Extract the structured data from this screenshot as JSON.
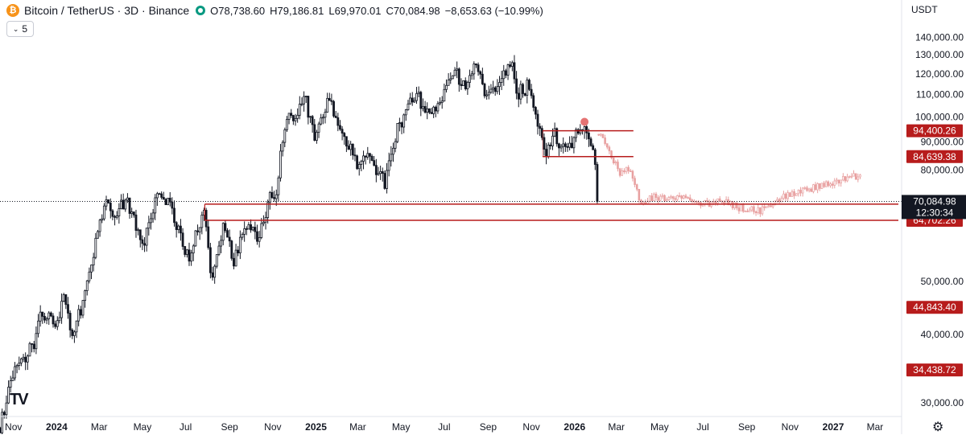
{
  "header": {
    "symbol": "Bitcoin / TetherUS · 3D · Binance",
    "open": "O78,738.60",
    "high": "H79,186.81",
    "low": "L69,970.01",
    "close": "C70,084.98",
    "change": "−8,653.63 (−10.99%)",
    "icon": "bitcoin-icon",
    "status_icon": "market-open-dot-icon"
  },
  "indicator_toggle": "5",
  "currency_label": "USDT",
  "logo_text": "TV",
  "colors": {
    "up": "#ffffff",
    "down": "#131722",
    "level": "#b71c1c",
    "projection": "#e8a0a0",
    "grid": "#eceef2",
    "axis": "#131722"
  },
  "chart_data": {
    "type": "candlestick",
    "title": "Bitcoin / TetherUS · 3D · Binance",
    "y_axis": {
      "scale": "log",
      "range": [
        28500,
        152000
      ],
      "ticks": [
        30000,
        40000,
        50000,
        80000,
        90000,
        100000,
        110000,
        120000,
        130000,
        140000
      ],
      "tick_labels": [
        "30,000.00",
        "40,000.00",
        "50,000.00",
        "80,000.00",
        "90,000.00",
        "100,000.00",
        "110,000.00",
        "120,000.00",
        "130,000.00",
        "140,000.00"
      ]
    },
    "x_axis": {
      "range": [
        "2023-10-13",
        "2027-04-03"
      ],
      "ticks": [
        {
          "date": "2023-11-01",
          "label": "Nov",
          "bold": false
        },
        {
          "date": "2024-01-01",
          "label": "2024",
          "bold": true
        },
        {
          "date": "2024-03-01",
          "label": "Mar",
          "bold": false
        },
        {
          "date": "2024-05-01",
          "label": "May",
          "bold": false
        },
        {
          "date": "2024-07-01",
          "label": "Jul",
          "bold": false
        },
        {
          "date": "2024-09-01",
          "label": "Sep",
          "bold": false
        },
        {
          "date": "2024-11-01",
          "label": "Nov",
          "bold": false
        },
        {
          "date": "2025-01-01",
          "label": "2025",
          "bold": true
        },
        {
          "date": "2025-03-01",
          "label": "Mar",
          "bold": false
        },
        {
          "date": "2025-05-01",
          "label": "May",
          "bold": false
        },
        {
          "date": "2025-07-01",
          "label": "Jul",
          "bold": false
        },
        {
          "date": "2025-09-01",
          "label": "Sep",
          "bold": false
        },
        {
          "date": "2025-11-01",
          "label": "Nov",
          "bold": false
        },
        {
          "date": "2026-01-01",
          "label": "2026",
          "bold": true
        },
        {
          "date": "2026-03-01",
          "label": "Mar",
          "bold": false
        },
        {
          "date": "2026-05-01",
          "label": "May",
          "bold": false
        },
        {
          "date": "2026-07-01",
          "label": "Jul",
          "bold": false
        },
        {
          "date": "2026-09-01",
          "label": "Sep",
          "bold": false
        },
        {
          "date": "2026-11-01",
          "label": "Nov",
          "bold": false
        },
        {
          "date": "2027-01-01",
          "label": "2027",
          "bold": true
        },
        {
          "date": "2027-03-01",
          "label": "Mar",
          "bold": false
        }
      ]
    },
    "price_path": [
      [
        "2023-10-13",
        27000
      ],
      [
        "2023-11-01",
        34500
      ],
      [
        "2023-12-01",
        38500
      ],
      [
        "2023-12-09",
        43500
      ],
      [
        "2024-01-01",
        42500
      ],
      [
        "2024-01-11",
        46500
      ],
      [
        "2024-01-23",
        39500
      ],
      [
        "2024-02-10",
        47500
      ],
      [
        "2024-02-28",
        62000
      ],
      [
        "2024-03-13",
        72500
      ],
      [
        "2024-03-20",
        64000
      ],
      [
        "2024-04-08",
        71500
      ],
      [
        "2024-05-01",
        57500
      ],
      [
        "2024-05-20",
        71500
      ],
      [
        "2024-06-07",
        70000
      ],
      [
        "2024-07-05",
        54500
      ],
      [
        "2024-07-28",
        69500
      ],
      [
        "2024-08-05",
        50500
      ],
      [
        "2024-08-25",
        64500
      ],
      [
        "2024-09-06",
        53500
      ],
      [
        "2024-09-27",
        65500
      ],
      [
        "2024-10-10",
        59500
      ],
      [
        "2024-10-29",
        72500
      ],
      [
        "2024-11-05",
        68500
      ],
      [
        "2024-11-13",
        90000
      ],
      [
        "2024-11-22",
        99000
      ],
      [
        "2024-12-05",
        103000
      ],
      [
        "2024-12-17",
        107500
      ],
      [
        "2024-12-30",
        92500
      ],
      [
        "2025-01-20",
        108000
      ],
      [
        "2025-02-03",
        97000
      ],
      [
        "2025-02-28",
        81500
      ],
      [
        "2025-03-18",
        84500
      ],
      [
        "2025-04-08",
        76000
      ],
      [
        "2025-04-25",
        94500
      ],
      [
        "2025-05-22",
        111000
      ],
      [
        "2025-06-05",
        101500
      ],
      [
        "2025-06-20",
        103500
      ],
      [
        "2025-07-14",
        121500
      ],
      [
        "2025-08-02",
        113500
      ],
      [
        "2025-08-14",
        123500
      ],
      [
        "2025-09-01",
        108500
      ],
      [
        "2025-09-18",
        117000
      ],
      [
        "2025-10-06",
        125500
      ],
      [
        "2025-10-10",
        110000
      ],
      [
        "2025-10-28",
        114000
      ],
      [
        "2025-11-21",
        84000
      ],
      [
        "2025-12-03",
        93500
      ],
      [
        "2025-12-18",
        86500
      ],
      [
        "2026-01-05",
        93500
      ],
      [
        "2026-01-15",
        96500
      ],
      [
        "2026-01-25",
        88000
      ],
      [
        "2026-02-01",
        78700
      ],
      [
        "2026-02-04",
        70085
      ]
    ],
    "projection_path": [
      [
        "2026-02-04",
        93000
      ],
      [
        "2026-02-20",
        86000
      ],
      [
        "2026-03-05",
        79000
      ],
      [
        "2026-03-20",
        80500
      ],
      [
        "2026-04-05",
        69500
      ],
      [
        "2026-04-25",
        71500
      ],
      [
        "2026-05-15",
        70500
      ],
      [
        "2026-06-01",
        71000
      ],
      [
        "2026-07-01",
        69500
      ],
      [
        "2026-08-01",
        70000
      ],
      [
        "2026-08-25",
        68000
      ],
      [
        "2026-09-20",
        67500
      ],
      [
        "2026-10-10",
        70000
      ],
      [
        "2026-11-01",
        72500
      ],
      [
        "2026-12-01",
        74000
      ],
      [
        "2027-01-01",
        75500
      ],
      [
        "2027-01-20",
        77500
      ],
      [
        "2027-02-10",
        78000
      ]
    ],
    "last_price": {
      "value": 70084.98,
      "label": "70,084.98",
      "countdown": "12:30:34"
    },
    "levels": [
      {
        "value": 94400.26,
        "label": "94,400.26",
        "from": "2025-11-17",
        "to": "2026-03-25",
        "on_chart": true
      },
      {
        "value": 84639.38,
        "label": "84,639.38",
        "from": "2025-11-17",
        "to": "2026-03-25",
        "on_chart": true
      },
      {
        "value": 69271.18,
        "label": "69,271.18",
        "from": "2024-07-28",
        "to": "2027-04-03",
        "on_chart": true
      },
      {
        "value": 64702.26,
        "label": "64,702.26",
        "from": "2024-07-28",
        "to": "2027-04-03",
        "on_chart": true
      },
      {
        "value": 44843.4,
        "label": "44,843.40",
        "on_chart": false
      },
      {
        "value": 34438.72,
        "label": "34,438.72",
        "on_chart": false
      }
    ],
    "marker": {
      "date": "2026-01-15",
      "value": 98000
    },
    "grid": false,
    "legend": "none"
  }
}
